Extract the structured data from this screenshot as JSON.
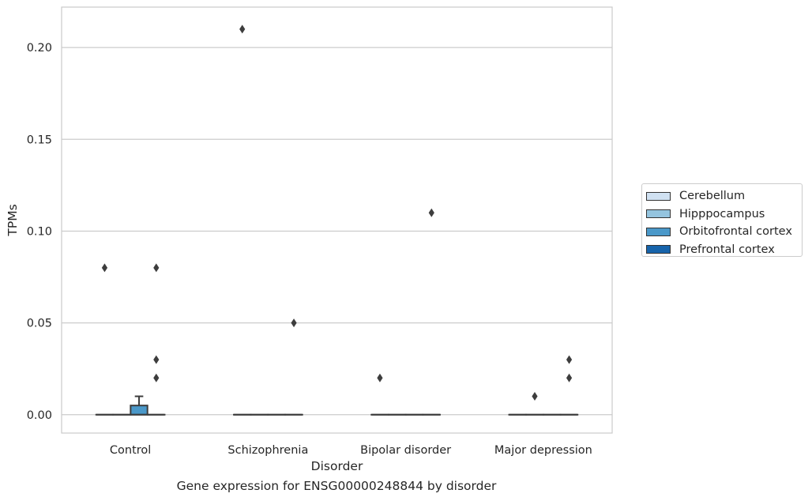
{
  "caption": "Gene expression for ENSG00000248844 by disorder",
  "chart_data": {
    "type": "box",
    "xlabel": "Disorder",
    "ylabel": "TPMs",
    "categories": [
      "Control",
      "Schizophrenia",
      "Bipolar disorder",
      "Major depression"
    ],
    "yticks": [
      "0.00",
      "0.05",
      "0.10",
      "0.15",
      "0.20"
    ],
    "ylim": [
      -0.01,
      0.222
    ],
    "grid": "horizontal",
    "legend_position": "right",
    "series": [
      {
        "name": "Cerebellum",
        "color": "#d0e1f2",
        "boxes": [
          {
            "q1": 0,
            "median": 0,
            "q3": 0,
            "whisker_low": 0,
            "whisker_high": 0
          },
          {
            "q1": 0,
            "median": 0,
            "q3": 0,
            "whisker_low": 0,
            "whisker_high": 0
          },
          {
            "q1": 0,
            "median": 0,
            "q3": 0,
            "whisker_low": 0,
            "whisker_high": 0
          },
          {
            "q1": 0,
            "median": 0,
            "q3": 0,
            "whisker_low": 0,
            "whisker_high": 0
          }
        ],
        "outliers": [
          [
            0.08
          ],
          [
            0.21
          ],
          [
            0.02
          ],
          []
        ]
      },
      {
        "name": "Hipppocampus",
        "color": "#94c4df",
        "boxes": [
          {
            "q1": 0,
            "median": 0,
            "q3": 0,
            "whisker_low": 0,
            "whisker_high": 0
          },
          {
            "q1": 0,
            "median": 0,
            "q3": 0,
            "whisker_low": 0,
            "whisker_high": 0
          },
          {
            "q1": 0,
            "median": 0,
            "q3": 0,
            "whisker_low": 0,
            "whisker_high": 0
          },
          {
            "q1": 0,
            "median": 0,
            "q3": 0,
            "whisker_low": 0,
            "whisker_high": 0
          }
        ],
        "outliers": [
          [],
          [],
          [],
          [
            0.01
          ]
        ]
      },
      {
        "name": "Orbitofrontal cortex",
        "color": "#4a98c9",
        "boxes": [
          {
            "q1": 0,
            "median": 0,
            "q3": 0.005,
            "whisker_low": 0,
            "whisker_high": 0.01
          },
          {
            "q1": 0,
            "median": 0,
            "q3": 0,
            "whisker_low": 0,
            "whisker_high": 0
          },
          {
            "q1": 0,
            "median": 0,
            "q3": 0,
            "whisker_low": 0,
            "whisker_high": 0
          },
          {
            "q1": 0,
            "median": 0,
            "q3": 0,
            "whisker_low": 0,
            "whisker_high": 0
          }
        ],
        "outliers": [
          [],
          [],
          [],
          []
        ]
      },
      {
        "name": "Prefrontal cortex",
        "color": "#1764ab",
        "boxes": [
          {
            "q1": 0,
            "median": 0,
            "q3": 0,
            "whisker_low": 0,
            "whisker_high": 0
          },
          {
            "q1": 0,
            "median": 0,
            "q3": 0,
            "whisker_low": 0,
            "whisker_high": 0
          },
          {
            "q1": 0,
            "median": 0,
            "q3": 0,
            "whisker_low": 0,
            "whisker_high": 0
          },
          {
            "q1": 0,
            "median": 0,
            "q3": 0,
            "whisker_low": 0,
            "whisker_high": 0
          }
        ],
        "outliers": [
          [
            0.08,
            0.03,
            0.02
          ],
          [
            0.05
          ],
          [
            0.11
          ],
          [
            0.03,
            0.02
          ]
        ]
      }
    ]
  }
}
